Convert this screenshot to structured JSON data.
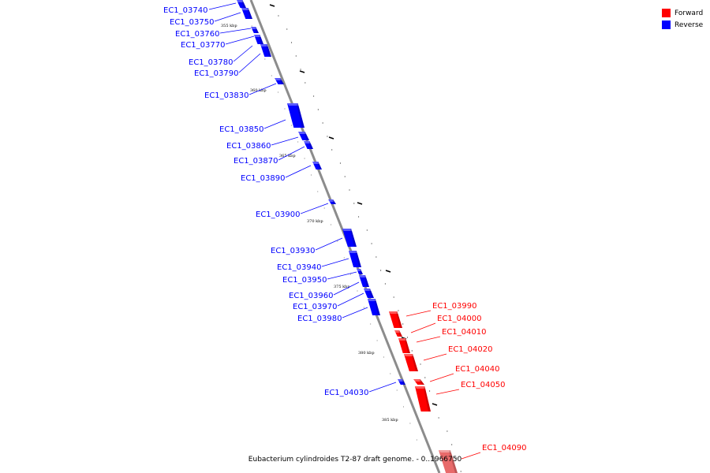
{
  "caption": "Eubacterium cylindroides T2-87 draft genome. - 0..1966750",
  "legend": [
    {
      "label": "Forward",
      "color": "#ff0000"
    },
    {
      "label": "Reverse",
      "color": "#0000ff"
    }
  ],
  "colors": {
    "forward": "#ff0000",
    "reverse": "#0000ff",
    "forward_faded": "#e86a6a",
    "backbone": "#8c8c8c"
  },
  "scale_labels": [
    "355 kbp",
    "360 kbp",
    "365 kbp",
    "370 kbp",
    "375 kbp",
    "380 kbp",
    "385 kbp"
  ],
  "genes": [
    {
      "name": "EC1_03740",
      "strand": "reverse"
    },
    {
      "name": "EC1_03750",
      "strand": "reverse"
    },
    {
      "name": "EC1_03760",
      "strand": "reverse"
    },
    {
      "name": "EC1_03770",
      "strand": "reverse"
    },
    {
      "name": "EC1_03780",
      "strand": "reverse"
    },
    {
      "name": "EC1_03790",
      "strand": "reverse"
    },
    {
      "name": "EC1_03830",
      "strand": "reverse"
    },
    {
      "name": "EC1_03850",
      "strand": "reverse"
    },
    {
      "name": "EC1_03860",
      "strand": "reverse"
    },
    {
      "name": "EC1_03870",
      "strand": "reverse"
    },
    {
      "name": "EC1_03890",
      "strand": "reverse"
    },
    {
      "name": "EC1_03900",
      "strand": "reverse"
    },
    {
      "name": "EC1_03930",
      "strand": "reverse"
    },
    {
      "name": "EC1_03940",
      "strand": "reverse"
    },
    {
      "name": "EC1_03950",
      "strand": "reverse"
    },
    {
      "name": "EC1_03960",
      "strand": "reverse"
    },
    {
      "name": "EC1_03970",
      "strand": "reverse"
    },
    {
      "name": "EC1_03980",
      "strand": "reverse"
    },
    {
      "name": "EC1_03990",
      "strand": "forward"
    },
    {
      "name": "EC1_04000",
      "strand": "forward"
    },
    {
      "name": "EC1_04010",
      "strand": "forward"
    },
    {
      "name": "EC1_04020",
      "strand": "forward"
    },
    {
      "name": "EC1_04030",
      "strand": "reverse"
    },
    {
      "name": "EC1_04040",
      "strand": "forward"
    },
    {
      "name": "EC1_04050",
      "strand": "forward"
    },
    {
      "name": "EC1_04090",
      "strand": "forward"
    }
  ]
}
